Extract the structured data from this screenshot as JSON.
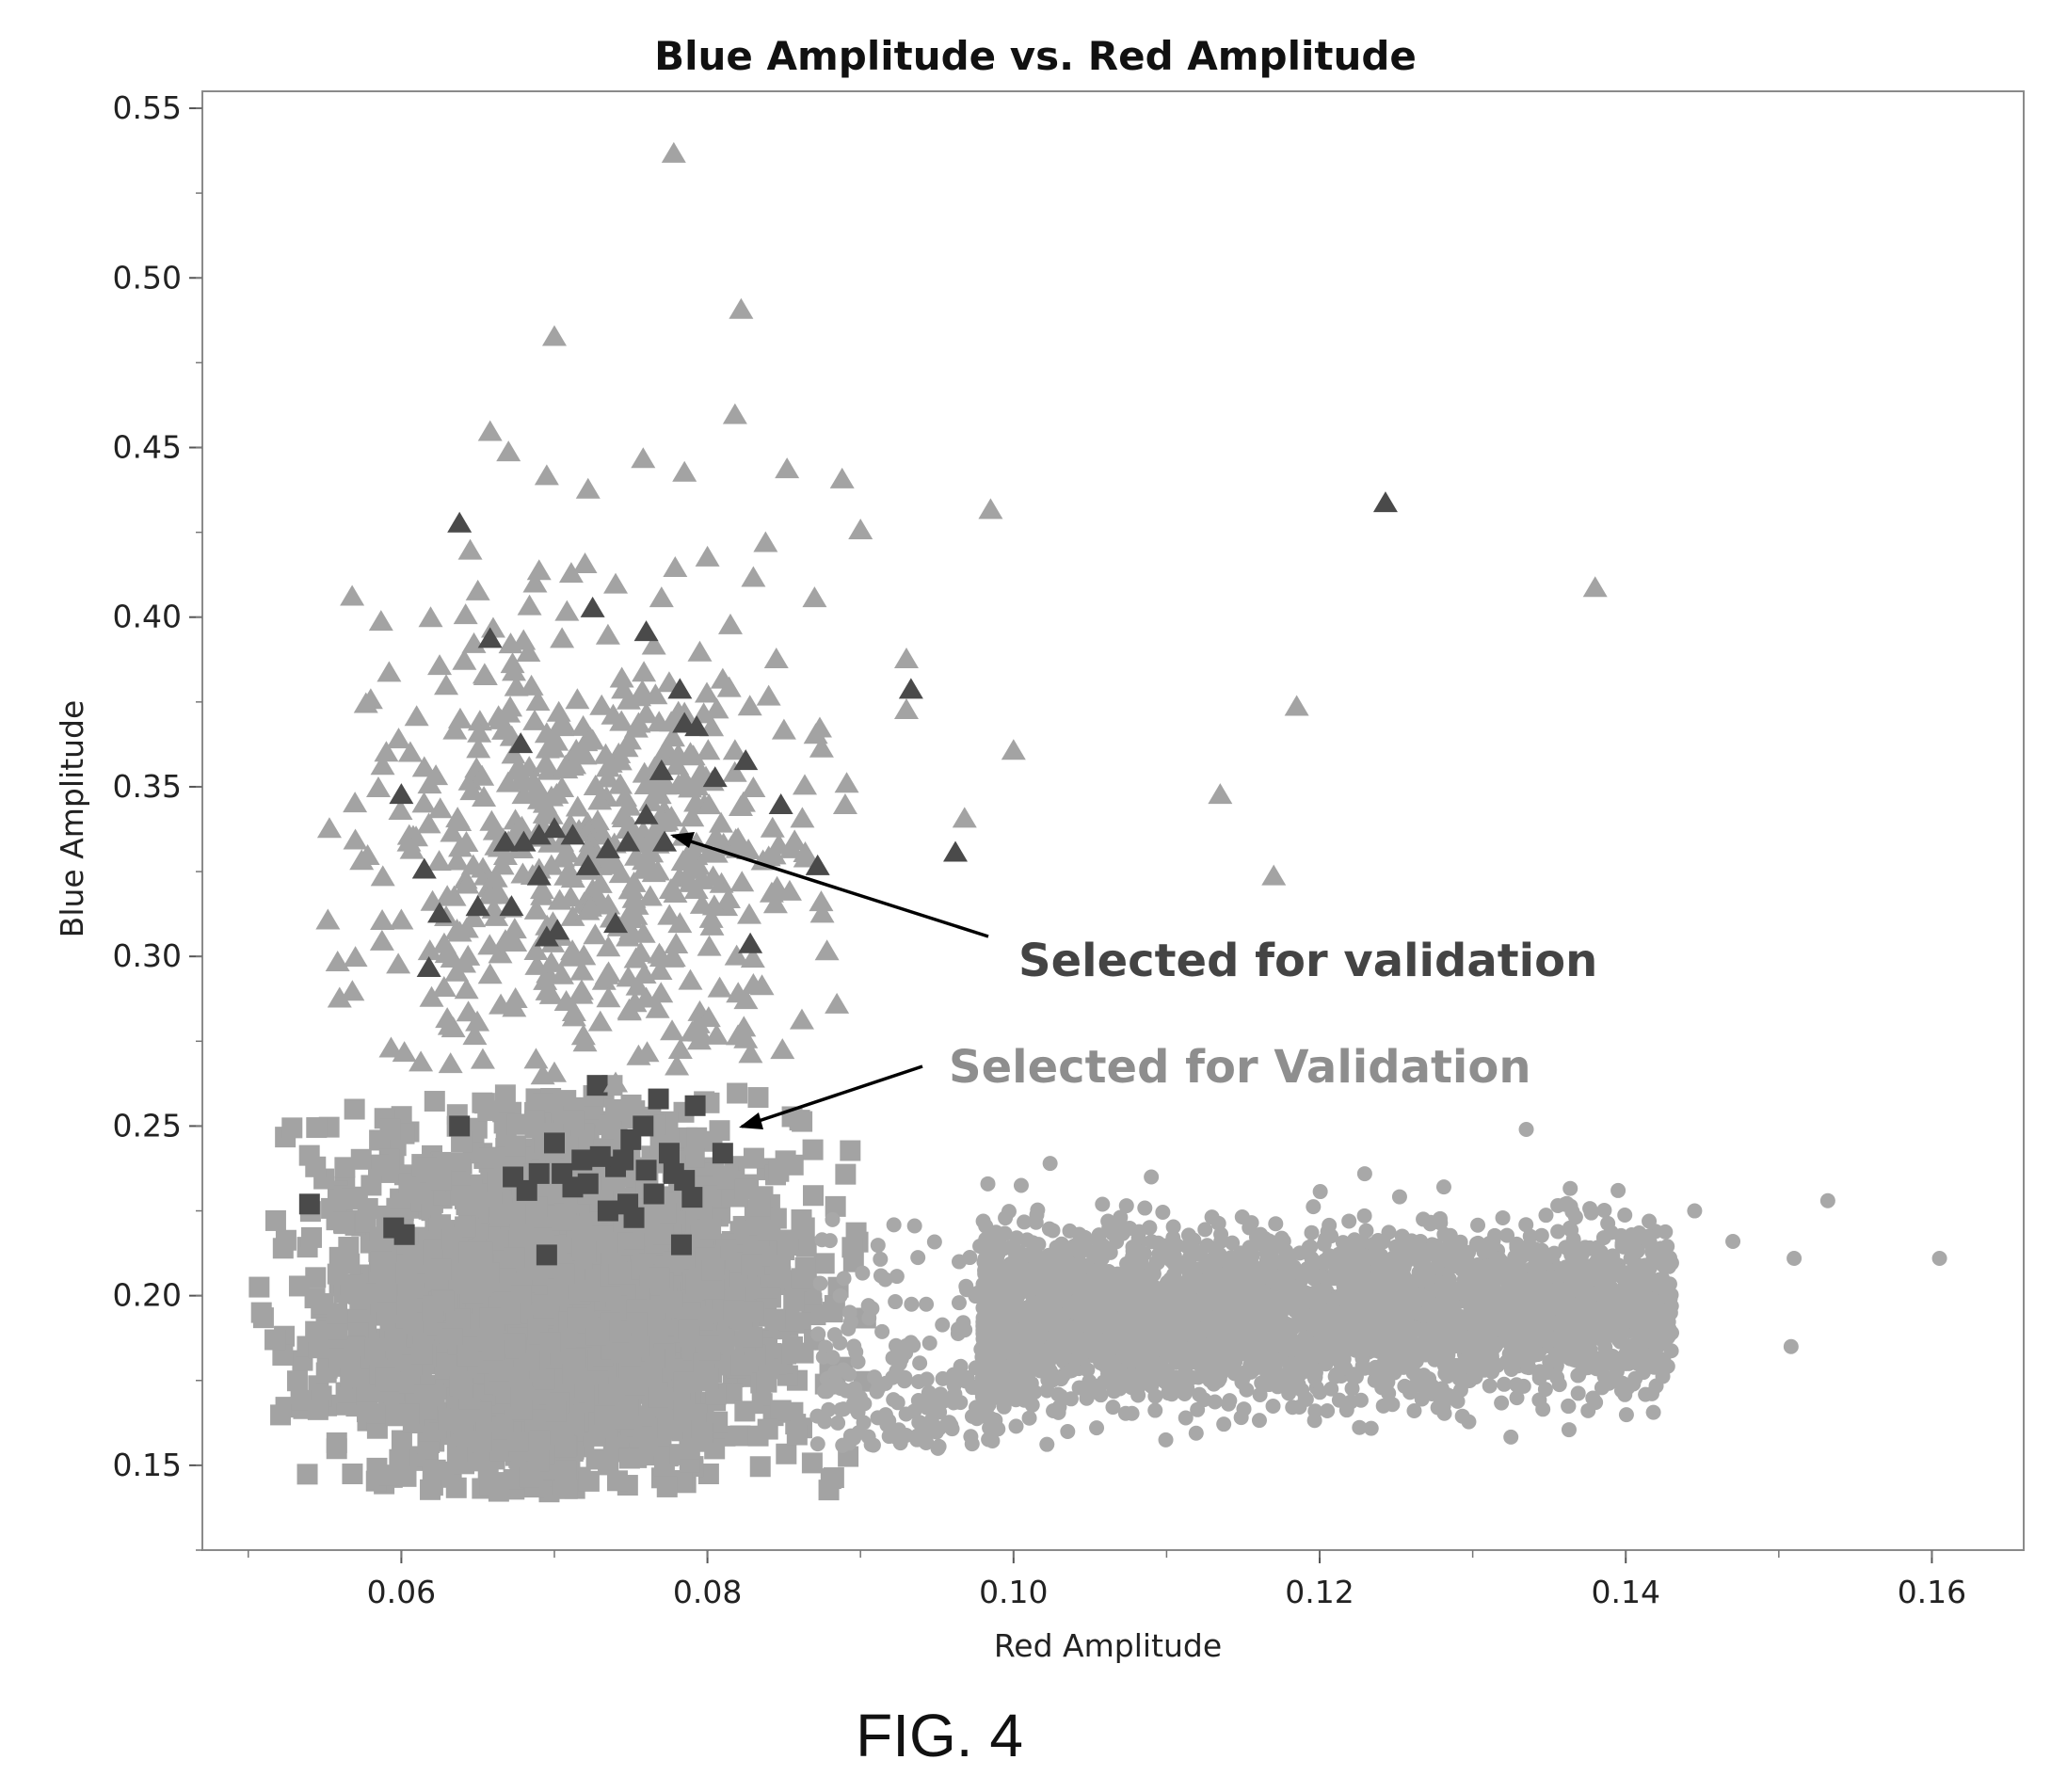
{
  "chart_data": {
    "type": "scatter",
    "title": "Blue Amplitude vs. Red Amplitude",
    "xlabel": "Red Amplitude",
    "ylabel": "Blue Amplitude",
    "xlim": [
      0.047,
      0.166
    ],
    "ylim": [
      0.125,
      0.555
    ],
    "x_ticks": [
      "0.06",
      "0.08",
      "0.10",
      "0.12",
      "0.14",
      "0.16"
    ],
    "y_ticks": [
      "0.15",
      "0.20",
      "0.25",
      "0.30",
      "0.35",
      "0.40",
      "0.45",
      "0.50",
      "0.55"
    ],
    "grid": false,
    "legend": "none",
    "colors": {
      "light_marker": "#a3a3a3",
      "dark_marker": "#4a4a4a",
      "circle_marker": "#a8a8a8"
    },
    "series": [
      {
        "marker": "triangle",
        "color": "#a3a3a3",
        "x": [
          0.0778,
          0.0822,
          0.07,
          0.0818,
          0.0658,
          0.067,
          0.0695,
          0.0722,
          0.0758,
          0.0785,
          0.0852,
          0.0888,
          0.09,
          0.0985,
          0.0645,
          0.065,
          0.069,
          0.072,
          0.074,
          0.077,
          0.08,
          0.083,
          0.087,
          0.0642,
          0.066,
          0.0705,
          0.0735,
          0.0765,
          0.0795,
          0.0815,
          0.0845,
          0.0592,
          0.0625,
          0.0655,
          0.0685,
          0.0715,
          0.0745,
          0.0775,
          0.081,
          0.084,
          0.093,
          0.058,
          0.061,
          0.0635,
          0.0665,
          0.0695,
          0.0725,
          0.0755,
          0.0785,
          0.0818,
          0.085,
          0.0553,
          0.0585,
          0.0615,
          0.0645,
          0.0675,
          0.0705,
          0.0735,
          0.0768,
          0.0798,
          0.083,
          0.0862,
          0.089,
          0.0552,
          0.0578,
          0.0605,
          0.0638,
          0.0668,
          0.0698,
          0.0728,
          0.0758,
          0.079,
          0.082,
          0.0855,
          0.057,
          0.06,
          0.063,
          0.0662,
          0.0692,
          0.0722,
          0.0752,
          0.0782,
          0.0812,
          0.0842,
          0.0875,
          0.0568,
          0.0598,
          0.0628,
          0.0658,
          0.0688,
          0.0718,
          0.0748,
          0.0778,
          0.0808,
          0.063,
          0.0665,
          0.0698,
          0.073,
          0.076,
          0.0795,
          0.083,
          0.0602,
          0.0648,
          0.0688,
          0.072,
          0.0755,
          0.079,
          0.0825,
          0.07,
          0.074,
          0.078,
          0.0668,
          0.0712,
          0.075,
          0.0655,
          0.069,
          0.0725,
          0.0765,
          0.068,
          0.0745,
          0.071,
          0.067,
          0.0705,
          0.0742,
          0.073,
          0.076,
          0.077,
          0.1,
          0.0968,
          0.1135,
          0.1185,
          0.117,
          0.138,
          0.093
        ],
        "y": [
          0.537,
          0.491,
          0.483,
          0.46,
          0.455,
          0.449,
          0.442,
          0.438,
          0.447,
          0.443,
          0.444,
          0.441,
          0.426,
          0.432,
          0.42,
          0.408,
          0.414,
          0.416,
          0.41,
          0.406,
          0.418,
          0.412,
          0.406,
          0.401,
          0.397,
          0.394,
          0.395,
          0.392,
          0.39,
          0.398,
          0.388,
          0.384,
          0.386,
          0.383,
          0.38,
          0.376,
          0.379,
          0.381,
          0.382,
          0.377,
          0.388,
          0.376,
          0.371,
          0.367,
          0.37,
          0.366,
          0.364,
          0.369,
          0.372,
          0.361,
          0.367,
          0.338,
          0.35,
          0.356,
          0.352,
          0.355,
          0.35,
          0.356,
          0.348,
          0.345,
          0.35,
          0.341,
          0.345,
          0.311,
          0.33,
          0.334,
          0.34,
          0.33,
          0.342,
          0.336,
          0.337,
          0.33,
          0.335,
          0.332,
          0.3,
          0.311,
          0.318,
          0.312,
          0.32,
          0.316,
          0.322,
          0.31,
          0.315,
          0.319,
          0.313,
          0.29,
          0.298,
          0.304,
          0.295,
          0.302,
          0.296,
          0.306,
          0.3,
          0.291,
          0.282,
          0.286,
          0.289,
          0.281,
          0.288,
          0.284,
          0.292,
          0.272,
          0.277,
          0.27,
          0.275,
          0.271,
          0.278,
          0.276,
          0.266,
          0.263,
          0.268,
          0.305,
          0.312,
          0.308,
          0.324,
          0.326,
          0.32,
          0.325,
          0.348,
          0.342,
          0.358,
          0.372,
          0.368,
          0.36,
          0.327,
          0.329,
          0.3,
          0.361,
          0.341,
          0.348,
          0.374,
          0.324,
          0.409,
          0.373
        ]
      },
      {
        "marker": "triangle",
        "color": "#4a4a4a",
        "x": [
          0.0638,
          0.1243,
          0.0658,
          0.0678,
          0.0725,
          0.076,
          0.0848,
          0.0933,
          0.06,
          0.0615,
          0.0625,
          0.065,
          0.0668,
          0.068,
          0.069,
          0.07,
          0.0712,
          0.0722,
          0.0735,
          0.0748,
          0.076,
          0.0772,
          0.0785,
          0.0793,
          0.0805,
          0.0825,
          0.0962,
          0.0872,
          0.0618,
          0.065,
          0.0672,
          0.0695,
          0.0702,
          0.069,
          0.074,
          0.0828,
          0.0782,
          0.077
        ],
        "y": [
          0.428,
          0.434,
          0.394,
          0.363,
          0.403,
          0.396,
          0.345,
          0.379,
          0.348,
          0.326,
          0.313,
          0.315,
          0.334,
          0.334,
          0.336,
          0.338,
          0.336,
          0.327,
          0.332,
          0.334,
          0.342,
          0.334,
          0.369,
          0.368,
          0.353,
          0.358,
          0.331,
          0.327,
          0.297,
          0.315,
          0.315,
          0.306,
          0.308,
          0.324,
          0.31,
          0.304,
          0.379,
          0.355
        ]
      },
      {
        "marker": "square",
        "color": "#a3a3a3",
        "cluster": {
          "x_range": [
            0.0505,
            0.0905
          ],
          "y_range": [
            0.142,
            0.262
          ],
          "n": 2600
        }
      },
      {
        "marker": "square",
        "color": "#4a4a4a",
        "x": [
          0.0728,
          0.0792,
          0.0638,
          0.0758,
          0.07,
          0.0718,
          0.069,
          0.076,
          0.074,
          0.0775,
          0.0682,
          0.0712,
          0.0602,
          0.0735,
          0.0752,
          0.079,
          0.0705,
          0.0765,
          0.073,
          0.0785,
          0.0673,
          0.0745,
          0.0722,
          0.0595,
          0.0778,
          0.081,
          0.0695,
          0.0748,
          0.0768,
          0.054,
          0.0783,
          0.075
        ],
        "y": [
          0.262,
          0.256,
          0.25,
          0.25,
          0.245,
          0.24,
          0.236,
          0.237,
          0.238,
          0.242,
          0.231,
          0.232,
          0.218,
          0.225,
          0.223,
          0.229,
          0.236,
          0.23,
          0.241,
          0.234,
          0.235,
          0.24,
          0.233,
          0.22,
          0.236,
          0.242,
          0.212,
          0.227,
          0.258,
          0.227,
          0.215,
          0.246
        ]
      },
      {
        "marker": "circle",
        "color": "#a8a8a8",
        "cluster": {
          "x_range": [
            0.087,
            0.161
          ],
          "y_range": [
            0.155,
            0.25
          ],
          "n": 3800
        }
      }
    ]
  },
  "annotations": {
    "dark": "Selected for validation",
    "light": "Selected for Validation"
  },
  "figure_label": "FIG. 4"
}
